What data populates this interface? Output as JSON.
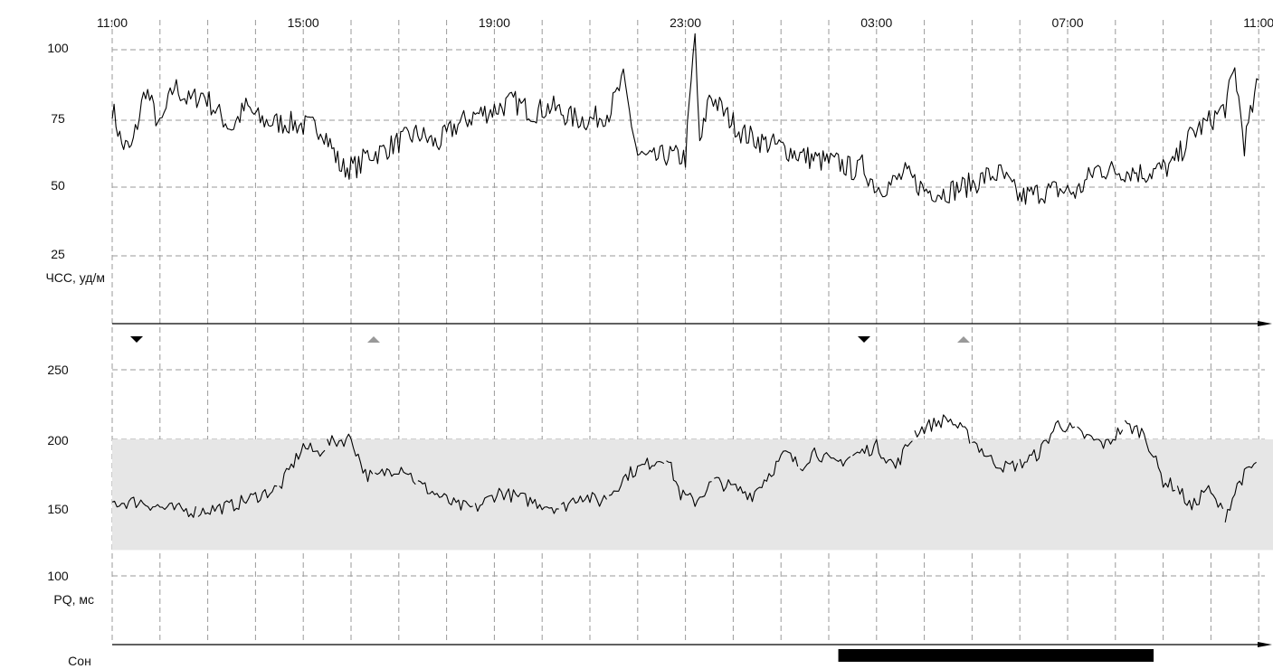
{
  "chart_data": [
    {
      "type": "line",
      "x_ticks": [
        "11:00",
        "15:00",
        "19:00",
        "23:00",
        "03:00",
        "07:00",
        "11:00"
      ],
      "ylabel": "ЧСС, уд/м",
      "y_ticks": [
        "100",
        "75",
        "50",
        "25"
      ],
      "ylim": [
        0,
        110
      ],
      "grid": true,
      "series": [
        {
          "x": [
            11.0,
            11.2,
            11.4,
            11.7,
            12.0,
            12.3,
            12.6,
            12.9,
            13.2,
            13.5,
            13.8,
            14.1,
            14.4,
            14.7,
            15.0,
            15.4,
            15.8,
            16.2,
            16.3,
            16.6,
            17.0,
            17.4,
            17.8,
            18.2,
            18.6,
            19.0,
            19.4,
            19.8,
            20.2,
            20.6,
            21.0,
            21.4,
            21.7,
            22.0,
            22.3,
            22.6,
            23.0,
            23.2,
            23.3,
            23.5,
            23.8,
            24.2,
            24.6,
            25.0,
            25.4,
            25.8,
            26.2,
            26.6,
            26.7,
            27.0,
            27.3,
            27.6,
            28.0,
            28.4,
            28.8,
            29.1,
            29.3,
            29.6,
            30.0,
            30.4,
            30.8,
            31.2,
            31.6,
            32.0,
            32.4,
            32.6,
            32.8,
            33.2,
            33.6,
            34.0,
            34.3,
            34.5,
            34.7,
            35.0
          ],
          "values": [
            80,
            66,
            64,
            87,
            72,
            88,
            82,
            85,
            78,
            72,
            80,
            75,
            74,
            74,
            73,
            72,
            57,
            58,
            62,
            63,
            67,
            70,
            66,
            73,
            77,
            79,
            82,
            78,
            80,
            76,
            75,
            78,
            90,
            62,
            60,
            62,
            61,
            107,
            64,
            85,
            78,
            70,
            67,
            65,
            62,
            60,
            59,
            56,
            58,
            50,
            51,
            55,
            49,
            48,
            50,
            52,
            54,
            55,
            46,
            48,
            49,
            48,
            57,
            56,
            56,
            55,
            56,
            58,
            70,
            75,
            80,
            94,
            66,
            90
          ]
        }
      ]
    },
    {
      "type": "scatter",
      "x_ticks": [
        "11:00",
        "15:00",
        "19:00",
        "23:00",
        "03:00",
        "07:00",
        "11:00"
      ],
      "ylabel": "PQ, мс",
      "y_ticks": [
        "250",
        "200",
        "150",
        "100"
      ],
      "ylim": [
        70,
        285
      ],
      "normal_range": [
        120,
        200
      ],
      "grid": true,
      "series": [
        {
          "x": [
            11.0,
            11.6,
            12.1,
            12.8,
            13.5,
            14.1,
            14.5,
            15.0,
            15.3,
            15.5,
            16.0,
            16.3,
            16.5,
            16.8,
            17.1,
            17.4,
            17.8,
            18.2,
            18.6,
            19.1,
            19.8,
            20.4,
            20.8,
            21.2,
            21.4,
            21.8,
            22.2,
            22.6,
            22.9,
            23.2,
            23.6,
            24.4,
            25.1,
            25.4,
            25.7,
            26.1,
            26.5,
            27.0,
            27.4,
            27.8,
            28.1,
            28.5,
            29.0,
            29.4,
            29.7,
            30.0,
            30.4,
            30.8,
            31.2,
            31.5,
            31.8,
            32.2,
            32.6,
            33.0,
            33.3,
            33.6,
            33.9,
            34.3,
            34.6,
            35.0
          ],
          "values": [
            154,
            155,
            150,
            148,
            152,
            160,
            165,
            195,
            190,
            197,
            201,
            175,
            172,
            178,
            180,
            168,
            160,
            152,
            150,
            162,
            155,
            150,
            160,
            155,
            160,
            175,
            182,
            188,
            160,
            155,
            170,
            160,
            190,
            180,
            192,
            182,
            188,
            195,
            180,
            205,
            210,
            215,
            200,
            185,
            180,
            182,
            190,
            212,
            205,
            200,
            196,
            210,
            205,
            170,
            165,
            150,
            165,
            145,
            170,
            185
          ]
        }
      ]
    },
    {
      "type": "bar",
      "ylabel": "Сон",
      "series": [
        {
          "x": [
            26.2,
            32.8
          ]
        }
      ]
    }
  ]
}
